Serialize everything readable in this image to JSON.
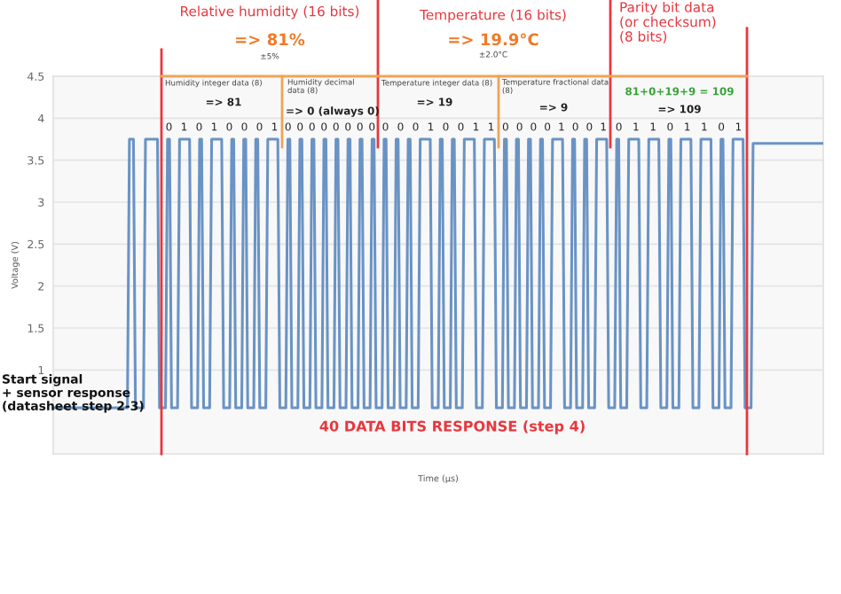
{
  "chart_data": {
    "type": "line",
    "xlabel": "Time (µs)",
    "ylabel": "Voltage (V)",
    "ylim": [
      0,
      4.5
    ],
    "yticks": [
      1,
      1.5,
      2,
      2.5,
      3,
      3.5,
      4,
      4.5
    ],
    "grid": "y",
    "annotations": [
      "Relative humidity (16 bits)",
      "=> 81%",
      "±5%",
      "Temperature (16 bits)",
      "=> 19.9°C",
      "±2.0°C",
      "Parity bit data\n(or checksum)\n(8 bits)",
      "Humidity integer data (8)",
      "=> 81",
      "Humidity decimal\ndata (8)",
      "=> 0 (always 0)",
      "Temperature integer data (8)",
      "=> 19",
      "Temperature fractional data\n(8)",
      "=> 9",
      "81+0+19+9 = 109",
      "=> 109",
      "0 1 0 1 0 0 0 1",
      "0 0 0 0 0 0 0 0",
      "0 0 0 1 0 0 1 1",
      "0 0 0 0 1 0 0 1",
      "0 1 1 0 1 1 0 1",
      "Start signal\n+ sensor response\n(datasheet step 2-3)",
      "40 DATA BITS RESPONSE (step 4)"
    ],
    "categories": [
      null,
      null,
      null,
      null,
      null,
      null,
      null,
      null,
      null,
      null,
      null,
      null,
      null,
      null,
      null,
      null,
      null,
      null,
      null,
      null,
      null,
      null,
      null,
      null,
      null,
      null,
      null,
      null,
      null,
      null,
      null,
      null,
      null,
      null,
      null,
      null,
      null,
      null,
      null,
      null,
      null,
      null,
      null,
      null,
      null,
      null,
      null,
      null,
      null,
      null,
      null,
      null,
      null,
      null,
      null,
      null,
      null,
      null,
      null,
      null,
      null,
      null,
      null,
      null,
      null,
      null,
      null,
      null,
      null,
      null,
      null,
      null,
      null,
      null,
      null,
      null,
      null,
      null,
      null,
      null,
      null,
      null,
      null,
      null,
      null,
      null,
      null,
      null,
      null,
      null,
      null,
      null,
      null,
      null,
      null,
      null,
      null,
      null,
      null,
      null,
      null,
      null,
      null,
      null,
      null,
      null,
      null,
      null,
      null,
      null,
      null,
      null,
      null,
      null,
      null,
      null,
      null,
      null,
      null,
      null,
      null,
      null,
      null,
      null,
      null,
      null,
      null,
      null,
      null,
      null,
      null,
      null,
      null,
      null,
      null,
      null,
      null,
      null,
      null,
      null,
      null,
      null,
      null,
      null,
      null,
      null,
      null,
      null,
      null,
      null,
      null,
      null,
      null,
      null,
      null,
      null,
      null,
      null,
      null,
      null,
      null,
      null,
      null,
      null,
      null,
      null,
      null,
      null,
      null,
      null,
      null,
      null,
      null,
      null,
      null,
      null,
      null,
      null,
      null,
      null,
      null,
      null,
      null,
      null,
      null,
      null,
      null,
      null,
      null,
      null,
      null,
      null,
      null,
      null,
      null,
      null,
      null,
      null,
      null,
      null,
      null,
      null,
      null,
      null,
      null,
      null,
      null,
      null,
      null,
      null,
      null,
      null,
      null,
      null,
      null,
      null,
      null,
      null,
      null,
      null,
      null,
      null,
      null,
      null,
      null,
      null,
      null,
      null,
      null,
      null,
      null,
      null,
      null,
      null,
      null,
      null,
      null,
      null,
      null,
      null,
      null,
      null,
      null,
      null,
      null,
      null,
      null,
      null,
      null,
      null,
      null,
      null,
      null,
      null,
      null,
      null,
      null,
      null,
      null,
      null,
      null,
      null,
      null,
      null,
      null,
      null,
      null,
      null,
      null,
      null,
      null,
      null,
      null,
      null,
      null,
      null,
      null,
      null,
      null,
      null,
      null,
      null,
      null,
      null,
      null,
      null,
      null,
      null,
      null,
      null,
      null,
      null,
      null,
      null,
      null,
      null,
      null,
      null,
      null,
      null,
      null,
      null,
      null,
      null,
      null,
      null,
      null,
      null,
      null,
      null,
      null,
      null,
      null,
      null,
      null,
      null,
      null,
      null,
      null,
      null,
      null,
      null,
      null,
      null,
      null,
      null,
      null,
      null,
      null,
      null,
      null,
      null,
      null,
      null,
      null,
      null,
      null,
      null,
      null,
      null,
      null,
      null,
      null,
      null,
      null,
      null,
      null,
      null,
      null,
      null,
      null,
      null,
      null,
      null,
      null,
      null,
      null,
      null,
      null,
      null,
      null,
      null,
      null,
      null,
      null,
      null,
      null,
      null,
      null,
      null,
      null,
      null,
      null,
      null,
      null,
      null,
      null,
      null,
      null,
      null,
      null,
      null,
      null,
      null,
      null
    ],
    "series": [
      {
        "color": "#6a93c4",
        "values": [
          0.55,
          0.55,
          0.55,
          0.55,
          0.55,
          0.55,
          0.55,
          0.55,
          0.55,
          0.55,
          0.55,
          0.55,
          0.55,
          0.55,
          0.55,
          0.55,
          0.55,
          0.55,
          0.55,
          0.55,
          0.55,
          0.55,
          0.55,
          0.55,
          0.55,
          0.55,
          0.55,
          0.55,
          0.55,
          0.55,
          0.55,
          0.55,
          0.55,
          0.55,
          0.55,
          0.55,
          0.55,
          0.55,
          3.75,
          3.75,
          3.75,
          0.55,
          0.55,
          0.55,
          0.55,
          0.55,
          3.75,
          3.75,
          3.75,
          3.75,
          3.75,
          3.75,
          3.75,
          0.55,
          0.55,
          0.55,
          0.55,
          3.75,
          3.75,
          0.55,
          0.55,
          0.55,
          0.55,
          3.75,
          3.75,
          3.75,
          3.75,
          3.75,
          3.75,
          0.55,
          0.55,
          0.55,
          0.55,
          3.75,
          3.75,
          0.55,
          0.55,
          0.55,
          0.55,
          3.75,
          3.75,
          3.75,
          3.75,
          3.75,
          3.75,
          0.55,
          0.55,
          0.55,
          0.55,
          3.75,
          3.75,
          0.55,
          0.55,
          0.55,
          0.55,
          3.75,
          3.75,
          0.55,
          0.55,
          0.55,
          0.55,
          3.75,
          3.75,
          0.55,
          0.55,
          0.55,
          0.55,
          3.75,
          3.75,
          3.75,
          3.75,
          3.75,
          3.75,
          0.55,
          0.55,
          0.55,
          0.55,
          3.75,
          3.75,
          0.55,
          0.55,
          0.55,
          0.55,
          3.75,
          3.75,
          0.55,
          0.55,
          0.55,
          0.55,
          3.75,
          3.75,
          0.55,
          0.55,
          0.55,
          0.55,
          3.75,
          3.75,
          0.55,
          0.55,
          0.55,
          0.55,
          3.75,
          3.75,
          0.55,
          0.55,
          0.55,
          0.55,
          3.75,
          3.75,
          0.55,
          0.55,
          0.55,
          0.55,
          3.75,
          3.75,
          0.55,
          0.55,
          0.55,
          0.55,
          3.75,
          3.75,
          0.55,
          0.55,
          0.55,
          0.55,
          3.75,
          3.75,
          0.55,
          0.55,
          0.55,
          0.55,
          3.75,
          3.75,
          0.55,
          0.55,
          0.55,
          0.55,
          3.75,
          3.75,
          0.55,
          0.55,
          0.55,
          0.55,
          3.75,
          3.75,
          3.75,
          3.75,
          3.75,
          3.75,
          0.55,
          0.55,
          0.55,
          0.55,
          3.75,
          3.75,
          0.55,
          0.55,
          0.55,
          0.55,
          3.75,
          3.75,
          0.55,
          0.55,
          0.55,
          0.55,
          3.75,
          3.75,
          3.75,
          3.75,
          3.75,
          3.75,
          0.55,
          0.55,
          0.55,
          0.55,
          3.75,
          3.75,
          3.75,
          3.75,
          3.75,
          3.75,
          0.55,
          0.55,
          0.55,
          0.55,
          3.75,
          3.75,
          0.55,
          0.55,
          0.55,
          0.55,
          3.75,
          3.75,
          0.55,
          0.55,
          0.55,
          0.55,
          3.75,
          3.75,
          0.55,
          0.55,
          0.55,
          0.55,
          3.75,
          3.75,
          0.55,
          0.55,
          0.55,
          0.55,
          3.75,
          3.75,
          3.75,
          3.75,
          3.75,
          3.75,
          0.55,
          0.55,
          0.55,
          0.55,
          3.75,
          3.75,
          0.55,
          0.55,
          0.55,
          0.55,
          3.75,
          3.75,
          0.55,
          0.55,
          0.55,
          0.55,
          3.75,
          3.75,
          3.75,
          3.75,
          3.75,
          3.75,
          0.55,
          0.55,
          0.55,
          0.55,
          3.75,
          3.75,
          0.55,
          0.55,
          0.55,
          0.55,
          3.75,
          3.75,
          3.75,
          3.75,
          3.75,
          3.75,
          0.55,
          0.55,
          0.55,
          0.55,
          3.75,
          3.75,
          3.75,
          3.75,
          3.75,
          3.75,
          0.55,
          0.55,
          0.55,
          0.55,
          3.75,
          3.75,
          0.55,
          0.55,
          0.55,
          0.55,
          3.75,
          3.75,
          3.75,
          3.75,
          3.75,
          3.75,
          0.55,
          0.55,
          0.55,
          0.55,
          3.75,
          3.75,
          3.75,
          3.75,
          3.75,
          3.75,
          0.55,
          0.55,
          0.55,
          0.55,
          3.75,
          3.75,
          0.55,
          0.55,
          0.55,
          0.55,
          3.75,
          3.75,
          3.75,
          3.75,
          3.75,
          3.75,
          0.55,
          0.55,
          0.55,
          0.55,
          3.7,
          3.7,
          3.7,
          3.7,
          3.7,
          3.7,
          3.7,
          3.7,
          3.7,
          3.7,
          3.7,
          3.7,
          3.7,
          3.7,
          3.7,
          3.7,
          3.7,
          3.7,
          3.7,
          3.7,
          3.7,
          3.7,
          3.7,
          3.7,
          3.7,
          3.7,
          3.7,
          3.7,
          3.7,
          3.7,
          3.7,
          3.7,
          3.7,
          3.7,
          3.7,
          3.7
        ]
      }
    ]
  }
}
